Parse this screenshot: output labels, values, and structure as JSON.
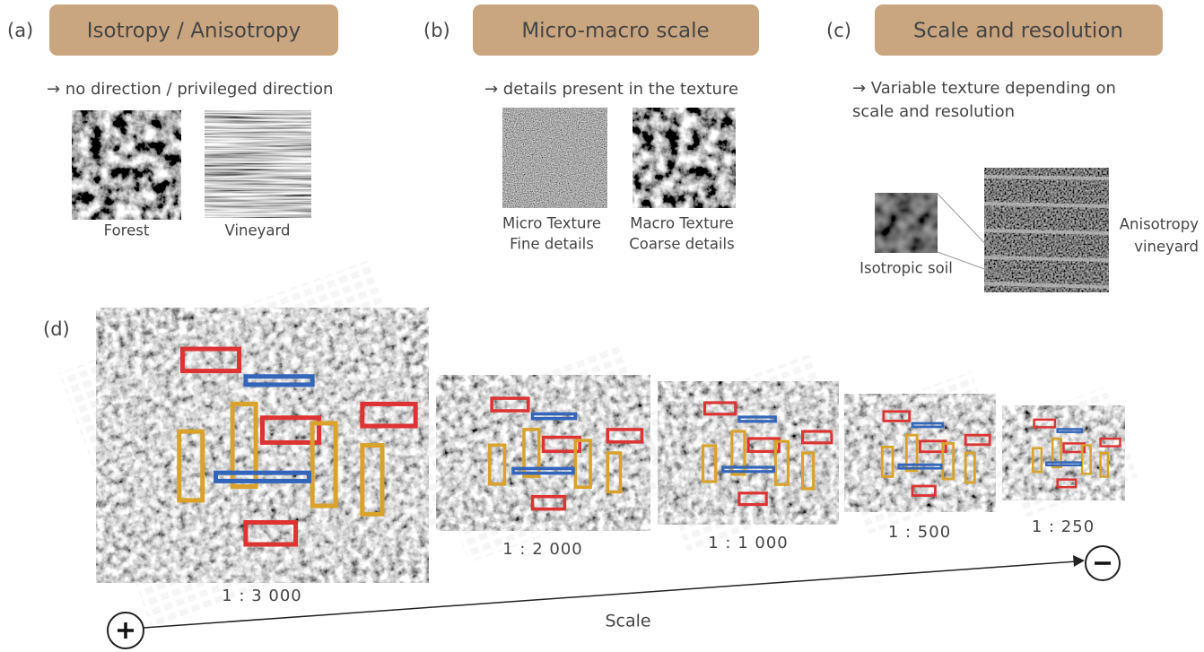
{
  "panels": [
    {
      "label": "(a)",
      "title": "Isotropy / Anisotropy",
      "description": [
        "→ no direction / privileged direction"
      ],
      "images": [
        {
          "caption": [
            "Forest"
          ]
        },
        {
          "caption": [
            "Vineyard"
          ]
        }
      ]
    },
    {
      "label": "(b)",
      "title": "Micro-macro scale",
      "description": [
        "→ details present in the texture"
      ],
      "images": [
        {
          "caption": [
            "Micro Texture",
            "Fine details"
          ]
        },
        {
          "caption": [
            "Macro Texture",
            "Coarse details"
          ]
        }
      ]
    },
    {
      "label": "(c)",
      "title": "Scale and resolution",
      "description": [
        "→ Variable texture depending on",
        "scale and resolution"
      ],
      "images": [
        {
          "caption": [
            "Isotropic soil"
          ]
        },
        {
          "caption": [
            "Anisotropy",
            "vineyard"
          ]
        }
      ]
    }
  ],
  "scale_panel": {
    "label": "(d)",
    "scales": [
      "1 : 3 000",
      "1 : 2 000",
      "1 : 1 000",
      "1 : 500",
      "1 : 250"
    ],
    "axis_label": "Scale"
  }
}
